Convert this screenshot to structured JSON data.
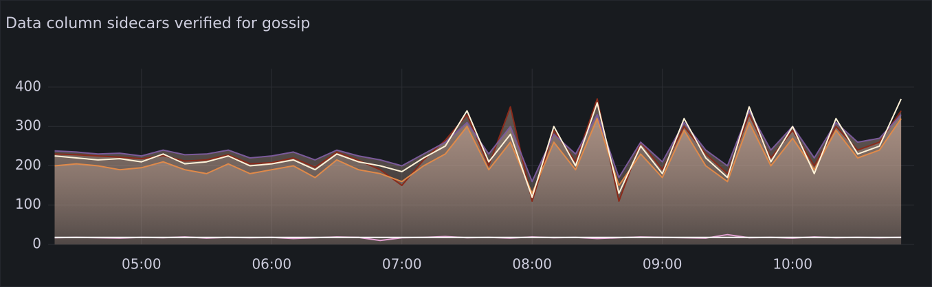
{
  "chart_data": {
    "type": "line",
    "title": "Data column sidecars verified for gossip",
    "x": [
      "04:20",
      "04:30",
      "04:40",
      "04:50",
      "05:00",
      "05:10",
      "05:20",
      "05:30",
      "05:40",
      "05:50",
      "06:00",
      "06:10",
      "06:20",
      "06:30",
      "06:40",
      "06:50",
      "07:00",
      "07:10",
      "07:20",
      "07:30",
      "07:40",
      "07:50",
      "08:00",
      "08:10",
      "08:20",
      "08:30",
      "08:40",
      "08:50",
      "09:00",
      "09:10",
      "09:20",
      "09:30",
      "09:40",
      "09:50",
      "10:00",
      "10:10",
      "10:20",
      "10:30",
      "10:40",
      "10:50"
    ],
    "series": [
      {
        "color": "#8a2a1a",
        "fill": true,
        "values": [
          230,
          228,
          225,
          222,
          218,
          226,
          212,
          215,
          228,
          205,
          208,
          220,
          196,
          235,
          214,
          190,
          150,
          215,
          265,
          330,
          200,
          350,
          110,
          290,
          210,
          370,
          110,
          260,
          190,
          300,
          230,
          180,
          330,
          220,
          290,
          200,
          300,
          240,
          260,
          340
        ]
      },
      {
        "color": "#e08a4a",
        "fill": true,
        "values": [
          200,
          205,
          200,
          190,
          195,
          210,
          190,
          180,
          205,
          180,
          190,
          200,
          170,
          215,
          190,
          180,
          160,
          200,
          230,
          300,
          190,
          260,
          130,
          260,
          190,
          320,
          150,
          230,
          170,
          290,
          200,
          160,
          310,
          200,
          270,
          190,
          290,
          220,
          240,
          320
        ]
      },
      {
        "color": "#7a5a9a",
        "fill": true,
        "values": [
          238,
          235,
          230,
          232,
          225,
          240,
          228,
          230,
          240,
          220,
          225,
          235,
          215,
          240,
          225,
          215,
          200,
          230,
          260,
          310,
          230,
          300,
          160,
          280,
          230,
          330,
          170,
          260,
          210,
          310,
          240,
          200,
          340,
          240,
          300,
          220,
          310,
          260,
          270,
          330
        ]
      },
      {
        "color": "#fff2d8",
        "fill": false,
        "values": [
          225,
          220,
          215,
          218,
          210,
          230,
          205,
          210,
          225,
          200,
          205,
          215,
          190,
          230,
          210,
          200,
          185,
          220,
          250,
          340,
          210,
          280,
          120,
          300,
          200,
          360,
          130,
          250,
          180,
          320,
          220,
          170,
          350,
          210,
          300,
          180,
          320,
          230,
          250,
          370
        ]
      },
      {
        "color": "#e0a0d0",
        "fill": false,
        "values": [
          17,
          18,
          17,
          16,
          18,
          17,
          19,
          16,
          18,
          17,
          18,
          15,
          17,
          19,
          18,
          10,
          17,
          18,
          20,
          17,
          18,
          16,
          19,
          17,
          18,
          15,
          17,
          19,
          18,
          17,
          16,
          25,
          17,
          18,
          16,
          19,
          17,
          18,
          17,
          18
        ]
      },
      {
        "color": "#ffffff",
        "fill": false,
        "values": [
          18,
          18,
          18,
          18,
          18,
          18,
          18,
          18,
          18,
          18,
          18,
          18,
          18,
          18,
          18,
          18,
          18,
          18,
          18,
          18,
          18,
          18,
          18,
          18,
          18,
          18,
          18,
          18,
          18,
          18,
          18,
          18,
          18,
          18,
          18,
          18,
          18,
          18,
          18,
          18
        ]
      }
    ],
    "xlim": [
      "04:17",
      "10:56"
    ],
    "xticks": [
      "05:00",
      "06:00",
      "07:00",
      "08:00",
      "09:00",
      "10:00"
    ],
    "ylim": [
      0,
      447
    ],
    "yticks": [
      0,
      100,
      200,
      300,
      400
    ],
    "grid": true
  }
}
